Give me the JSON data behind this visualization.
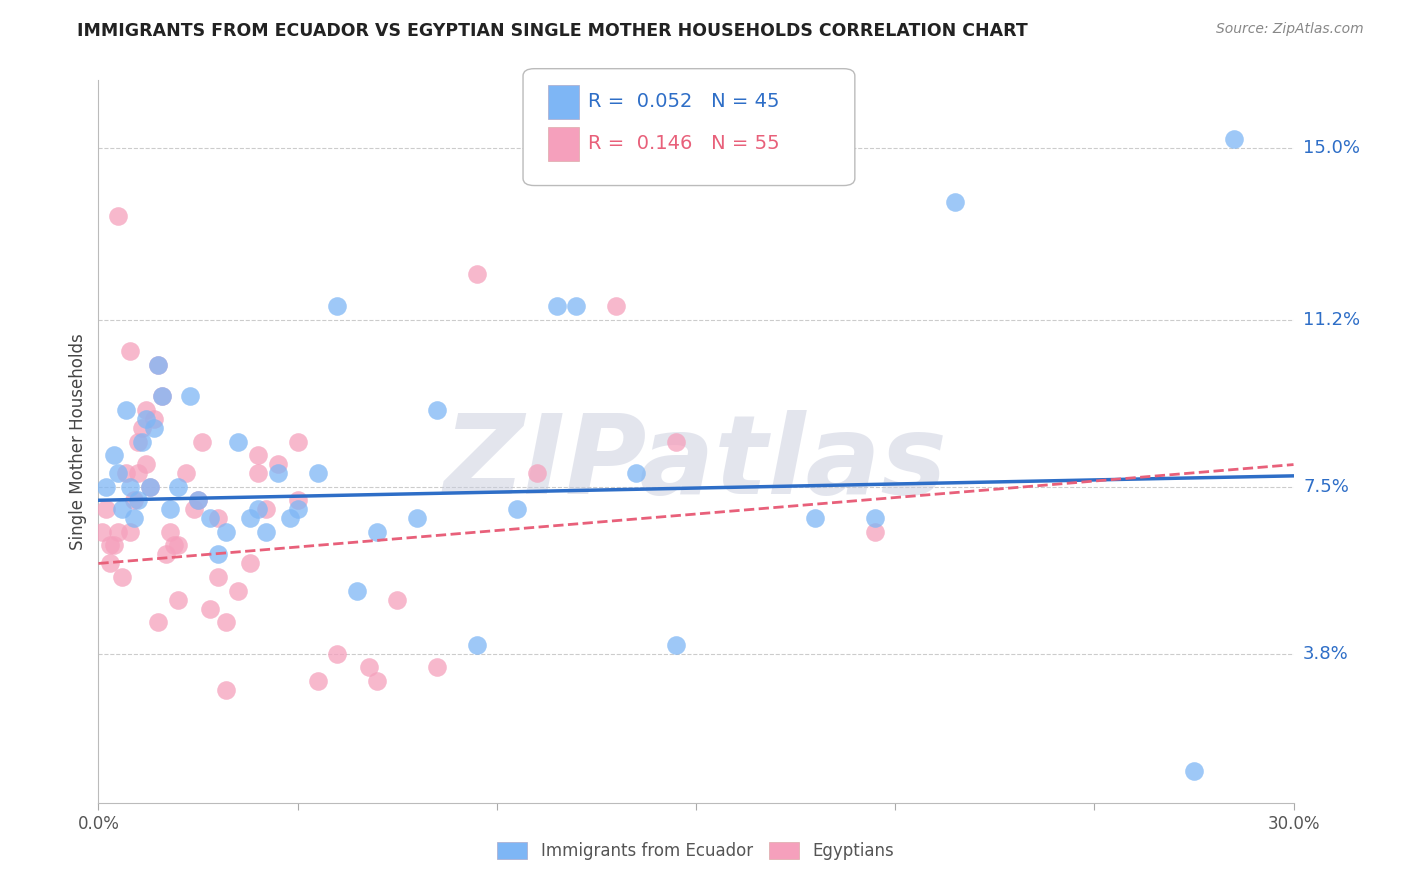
{
  "title": "IMMIGRANTS FROM ECUADOR VS EGYPTIAN SINGLE MOTHER HOUSEHOLDS CORRELATION CHART",
  "source": "Source: ZipAtlas.com",
  "ylabel": "Single Mother Households",
  "ytick_labels": [
    "3.8%",
    "7.5%",
    "11.2%",
    "15.0%"
  ],
  "ytick_values": [
    3.8,
    7.5,
    11.2,
    15.0
  ],
  "xmin": 0.0,
  "xmax": 30.0,
  "ymin": 0.5,
  "ymax": 16.5,
  "legend1_R": "0.052",
  "legend1_N": "45",
  "legend2_R": "0.146",
  "legend2_N": "55",
  "legend1_label": "Immigrants from Ecuador",
  "legend2_label": "Egyptians",
  "blue_color": "#7EB6F5",
  "pink_color": "#F5A0BC",
  "blue_line_color": "#2E6EC7",
  "pink_line_color": "#E8607A",
  "watermark": "ZIPatlas",
  "watermark_color": "#C8CCDD",
  "blue_dots_x": [
    0.2,
    0.4,
    0.5,
    0.6,
    0.7,
    0.8,
    0.9,
    1.0,
    1.1,
    1.2,
    1.3,
    1.4,
    1.5,
    1.6,
    1.8,
    2.0,
    2.3,
    2.5,
    2.8,
    3.0,
    3.2,
    3.5,
    4.0,
    4.2,
    4.5,
    5.0,
    5.5,
    6.5,
    7.0,
    8.0,
    8.5,
    9.5,
    10.5,
    11.5,
    13.5,
    14.5,
    18.0,
    21.5,
    27.5,
    28.5,
    3.8,
    4.8,
    6.0,
    12.0,
    19.5
  ],
  "blue_dots_y": [
    7.5,
    8.2,
    7.8,
    7.0,
    9.2,
    7.5,
    6.8,
    7.2,
    8.5,
    9.0,
    7.5,
    8.8,
    10.2,
    9.5,
    7.0,
    7.5,
    9.5,
    7.2,
    6.8,
    6.0,
    6.5,
    8.5,
    7.0,
    6.5,
    7.8,
    7.0,
    7.8,
    5.2,
    6.5,
    6.8,
    9.2,
    4.0,
    7.0,
    11.5,
    7.8,
    4.0,
    6.8,
    13.8,
    1.2,
    15.2,
    6.8,
    6.8,
    11.5,
    11.5,
    6.8
  ],
  "pink_dots_x": [
    0.1,
    0.2,
    0.3,
    0.4,
    0.5,
    0.6,
    0.7,
    0.8,
    0.9,
    1.0,
    1.1,
    1.2,
    1.3,
    1.4,
    1.5,
    1.6,
    1.7,
    1.8,
    1.9,
    2.0,
    2.2,
    2.4,
    2.6,
    2.8,
    3.0,
    3.2,
    3.5,
    3.8,
    4.0,
    4.2,
    4.5,
    5.0,
    5.5,
    6.0,
    6.8,
    7.5,
    9.5,
    11.0,
    13.0,
    0.3,
    0.5,
    0.8,
    1.0,
    1.2,
    1.5,
    2.0,
    2.5,
    3.0,
    4.0,
    5.0,
    3.2,
    7.0,
    8.5,
    14.5,
    19.5
  ],
  "pink_dots_y": [
    6.5,
    7.0,
    5.8,
    6.2,
    6.5,
    5.5,
    7.8,
    6.5,
    7.2,
    7.8,
    8.8,
    9.2,
    7.5,
    9.0,
    10.2,
    9.5,
    6.0,
    6.5,
    6.2,
    6.2,
    7.8,
    7.0,
    8.5,
    4.8,
    5.5,
    4.5,
    5.2,
    5.8,
    7.8,
    7.0,
    8.0,
    7.2,
    3.2,
    3.8,
    3.5,
    5.0,
    12.2,
    7.8,
    11.5,
    6.2,
    13.5,
    10.5,
    8.5,
    8.0,
    4.5,
    5.0,
    7.2,
    6.8,
    8.2,
    8.5,
    3.0,
    3.2,
    3.5,
    8.5,
    6.5
  ]
}
